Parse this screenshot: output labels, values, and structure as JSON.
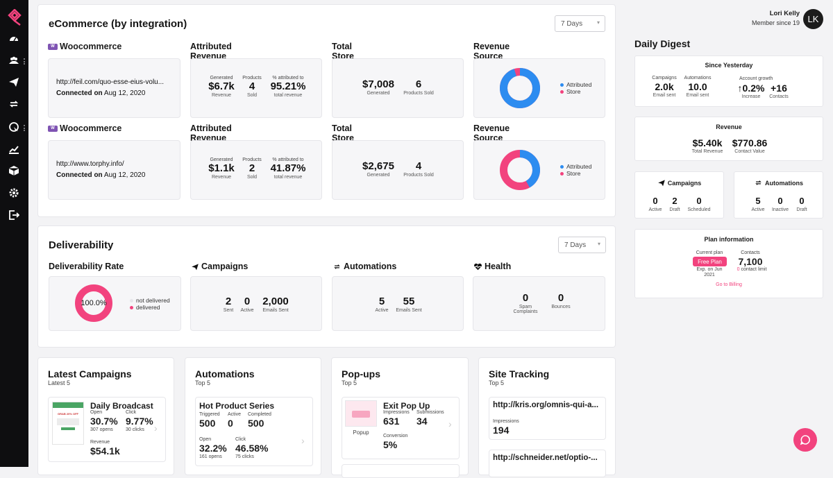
{
  "colors": {
    "pink": "#f2437e",
    "blue": "#2d8cf0",
    "sidebar": "#0e0e10"
  },
  "sidebar": {
    "icons": [
      "logo-icon",
      "dashboard-icon",
      "contacts-icon",
      "campaigns-icon",
      "automations-icon",
      "popups-icon",
      "reports-icon",
      "products-icon",
      "settings-icon",
      "logout-icon"
    ]
  },
  "ecommerce": {
    "title": "eCommerce (by integration)",
    "period": "7 Days",
    "rows": [
      {
        "integration": "Woocommerce",
        "url": "http://feil.com/quo-esse-eius-volu...",
        "connected_label": "Connected on",
        "connected_date": "Aug 12, 2020",
        "attributed_title": "Attributed Revenue",
        "generated_label": "Generated",
        "generated_value": "$6.7k",
        "generated_sub": "Revenue",
        "products_label": "Products",
        "products_value": "4",
        "products_sub": "Sold",
        "pct_label": "% attributed to",
        "pct_value": "95.21%",
        "pct_sub": "total revenue",
        "store_title": "Total Store Revenue",
        "store_value": "$7,008",
        "store_sub": "Generated",
        "store_products_value": "6",
        "store_products_sub": "Products Sold",
        "source_title": "Revenue Source",
        "attributed_pct": 95.21,
        "legend_attributed": "Attributed",
        "legend_store": "Store"
      },
      {
        "integration": "Woocommerce",
        "url": "http://www.torphy.info/",
        "connected_label": "Connected on",
        "connected_date": "Aug 12, 2020",
        "attributed_title": "Attributed Revenue",
        "generated_label": "Generated",
        "generated_value": "$1.1k",
        "generated_sub": "Revenue",
        "products_label": "Products",
        "products_value": "2",
        "products_sub": "Sold",
        "pct_label": "% attributed to",
        "pct_value": "41.87%",
        "pct_sub": "total revenue",
        "store_title": "Total Store Revenue",
        "store_value": "$2,675",
        "store_sub": "Generated",
        "store_products_value": "4",
        "store_products_sub": "Products Sold",
        "source_title": "Revenue Source",
        "attributed_pct": 41.87,
        "legend_attributed": "Attributed",
        "legend_store": "Store"
      }
    ]
  },
  "deliverability": {
    "title": "Deliverability",
    "period": "7 Days",
    "rate_title": "Deliverability Rate",
    "rate_value": "100.0%",
    "delivered_pct": 100,
    "legend_not_delivered": "not delivered",
    "legend_delivered": "delivered",
    "campaigns_title": "Campaigns",
    "campaigns": [
      {
        "v": "2",
        "l": "Sent"
      },
      {
        "v": "0",
        "l": "Active"
      },
      {
        "v": "2,000",
        "l": "Emails Sent"
      }
    ],
    "automations_title": "Automations",
    "automations": [
      {
        "v": "5",
        "l": "Active"
      },
      {
        "v": "55",
        "l": "Emails Sent"
      }
    ],
    "health_title": "Health",
    "health": [
      {
        "v": "0",
        "l": "Spam",
        "l2": "Complaints"
      },
      {
        "v": "0",
        "l": "Bounces",
        "l2": ""
      }
    ]
  },
  "latest_campaigns": {
    "title": "Latest Campaigns",
    "subtitle": "Latest 5",
    "item": {
      "name": "Daily Broadcast",
      "open_label": "Open",
      "open_value": "30.7%",
      "open_sub": "307 opens",
      "click_label": "Click",
      "click_value": "9.77%",
      "click_sub": "30 clicks",
      "revenue_label": "Revenue",
      "revenue_value": "$54.1k",
      "thumb_text": "GRAB 20% OFF"
    }
  },
  "automations_card": {
    "title": "Automations",
    "subtitle": "Top 5",
    "item": {
      "name": "Hot Product Series",
      "triggered_label": "Triggered",
      "triggered_value": "500",
      "active_label": "Active",
      "active_value": "0",
      "completed_label": "Completed",
      "completed_value": "500",
      "open_label": "Open",
      "open_value": "32.2%",
      "open_sub": "161 opens",
      "click_label": "Click",
      "click_value": "46.58%",
      "click_sub": "75 clicks"
    }
  },
  "popups": {
    "title": "Pop-ups",
    "subtitle": "Top 5",
    "item": {
      "name": "Exit Pop Up",
      "thumb_label": "Popup",
      "impressions_label": "Impressions",
      "impressions_value": "631",
      "submissions_label": "Submissions",
      "submissions_value": "34",
      "conversion_label": "Conversion",
      "conversion_value": "5%"
    }
  },
  "site_tracking": {
    "title": "Site Tracking",
    "subtitle": "Top 5",
    "items": [
      {
        "url": "http://kris.org/omnis-qui-a...",
        "impressions_label": "Impressions",
        "impressions_value": "194"
      },
      {
        "url": "http://schneider.net/optio-..."
      }
    ]
  },
  "user": {
    "name": "Lori Kelly",
    "member_since": "Member since 19",
    "initials": "LK"
  },
  "digest": {
    "title": "Daily Digest",
    "since": {
      "title": "Since Yesterday",
      "campaigns_label": "Campaigns",
      "campaigns_value": "2.0k",
      "campaigns_sub": "Email sent",
      "automations_label": "Automations",
      "automations_value": "10.0",
      "automations_sub": "Email sent",
      "growth_label": "Account growth",
      "growth_value": "0.2%",
      "growth_sub": "Increase",
      "contacts_value": "+16",
      "contacts_sub": "Contacts"
    },
    "revenue": {
      "title": "Revenue",
      "total_value": "$5.40k",
      "total_sub": "Total Revenue",
      "contact_value": "$770.86",
      "contact_sub": "Contact Value"
    },
    "campaigns": {
      "title": "Campaigns",
      "stats": [
        {
          "v": "0",
          "l": "Active"
        },
        {
          "v": "2",
          "l": "Draft"
        },
        {
          "v": "0",
          "l": "Scheduled"
        }
      ]
    },
    "automations": {
      "title": "Automations",
      "stats": [
        {
          "v": "5",
          "l": "Active"
        },
        {
          "v": "0",
          "l": "Inactive"
        },
        {
          "v": "0",
          "l": "Draft"
        }
      ]
    },
    "plan": {
      "title": "Plan information",
      "current_label": "Current plan",
      "plan_name": "Free Plan",
      "expires": "Exp. on Jun",
      "expires_year": "2021",
      "contacts_label": "Contacts",
      "contacts_value": "7,100",
      "limit_num": "0",
      "limit_text": "contact limit",
      "billing_link": "Go to Billing"
    }
  }
}
